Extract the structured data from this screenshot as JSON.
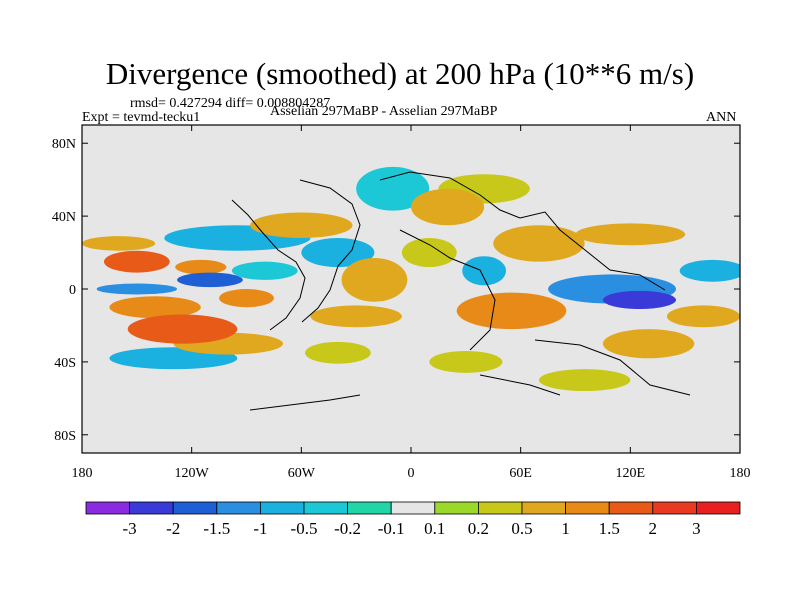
{
  "chart_data": {
    "type": "heatmap",
    "title": "Divergence (smoothed) at 200 hPa (10**6 m/s)",
    "stats_line": "rmsd= 0.427294 diff= 0.008804287",
    "experiment": "Expt = tevmd-tecku1",
    "case": "Asselian 297MaBP - Asselian 297MaBP",
    "season": "ANN",
    "xlabel": "",
    "ylabel": "",
    "xlim": [
      -180,
      180
    ],
    "ylim": [
      -90,
      90
    ],
    "x_ticks": [
      {
        "value": -180,
        "label": "180"
      },
      {
        "value": -120,
        "label": "120W"
      },
      {
        "value": -60,
        "label": "60W"
      },
      {
        "value": 0,
        "label": "0"
      },
      {
        "value": 60,
        "label": "60E"
      },
      {
        "value": 120,
        "label": "120E"
      },
      {
        "value": 180,
        "label": "180"
      }
    ],
    "y_ticks": [
      {
        "value": 80,
        "label": "80N"
      },
      {
        "value": 40,
        "label": "40N"
      },
      {
        "value": 0,
        "label": "0"
      },
      {
        "value": -40,
        "label": "40S"
      },
      {
        "value": -80,
        "label": "80S"
      }
    ],
    "levels": [
      -3,
      -2,
      -1.5,
      -1,
      -0.5,
      -0.2,
      -0.1,
      0.1,
      0.2,
      0.5,
      1,
      1.5,
      2,
      3
    ],
    "level_labels": [
      "-3",
      "-2",
      "-1.5",
      "-1",
      "-0.5",
      "-0.2",
      "-0.1",
      "0.1",
      "0.2",
      "0.5",
      "1",
      "1.5",
      "2",
      "3"
    ],
    "colors": [
      "#8a2be2",
      "#3a3ad8",
      "#1f5fd6",
      "#2a8fe0",
      "#1ab0e0",
      "#1dc8d6",
      "#22d4a8",
      "#e6e6e6",
      "#9ad82a",
      "#c8c81a",
      "#e0a81e",
      "#e88a18",
      "#e85a18",
      "#e83a20",
      "#e82020"
    ],
    "blobs": [
      {
        "x": -150,
        "y": 15,
        "rx": 18,
        "ry": 6,
        "v": 1.6
      },
      {
        "x": -160,
        "y": 25,
        "rx": 20,
        "ry": 4,
        "v": 0.7
      },
      {
        "x": -115,
        "y": 12,
        "rx": 14,
        "ry": 4,
        "v": 1.2
      },
      {
        "x": -110,
        "y": 5,
        "rx": 18,
        "ry": 4,
        "v": -1.7
      },
      {
        "x": -150,
        "y": 0,
        "rx": 22,
        "ry": 3,
        "v": -1.0
      },
      {
        "x": -140,
        "y": -10,
        "rx": 25,
        "ry": 6,
        "v": 1.3
      },
      {
        "x": -125,
        "y": -22,
        "rx": 30,
        "ry": 8,
        "v": 1.8
      },
      {
        "x": -100,
        "y": -30,
        "rx": 30,
        "ry": 6,
        "v": 1.0
      },
      {
        "x": -90,
        "y": -5,
        "rx": 15,
        "ry": 5,
        "v": 1.2
      },
      {
        "x": -130,
        "y": -38,
        "rx": 35,
        "ry": 6,
        "v": -0.5
      },
      {
        "x": -95,
        "y": 28,
        "rx": 40,
        "ry": 7,
        "v": -0.6
      },
      {
        "x": -60,
        "y": 35,
        "rx": 28,
        "ry": 7,
        "v": 0.8
      },
      {
        "x": -40,
        "y": 20,
        "rx": 20,
        "ry": 8,
        "v": -0.5
      },
      {
        "x": -80,
        "y": 10,
        "rx": 18,
        "ry": 5,
        "v": -0.4
      },
      {
        "x": -20,
        "y": 5,
        "rx": 18,
        "ry": 12,
        "v": 0.9
      },
      {
        "x": -30,
        "y": -15,
        "rx": 25,
        "ry": 6,
        "v": 0.6
      },
      {
        "x": -40,
        "y": -35,
        "rx": 18,
        "ry": 6,
        "v": 0.5
      },
      {
        "x": -10,
        "y": 55,
        "rx": 20,
        "ry": 12,
        "v": -0.4
      },
      {
        "x": 20,
        "y": 45,
        "rx": 20,
        "ry": 10,
        "v": 0.6
      },
      {
        "x": 40,
        "y": 55,
        "rx": 25,
        "ry": 8,
        "v": 0.4
      },
      {
        "x": 10,
        "y": 20,
        "rx": 15,
        "ry": 8,
        "v": 0.5
      },
      {
        "x": 40,
        "y": 10,
        "rx": 12,
        "ry": 8,
        "v": -0.5
      },
      {
        "x": 55,
        "y": -12,
        "rx": 30,
        "ry": 10,
        "v": 1.4
      },
      {
        "x": 70,
        "y": 25,
        "rx": 25,
        "ry": 10,
        "v": 0.7
      },
      {
        "x": 120,
        "y": 30,
        "rx": 30,
        "ry": 6,
        "v": 0.6
      },
      {
        "x": 110,
        "y": 0,
        "rx": 35,
        "ry": 8,
        "v": -1.3
      },
      {
        "x": 125,
        "y": -6,
        "rx": 20,
        "ry": 5,
        "v": -2.2
      },
      {
        "x": 130,
        "y": -30,
        "rx": 25,
        "ry": 8,
        "v": 1.0
      },
      {
        "x": 160,
        "y": -15,
        "rx": 20,
        "ry": 6,
        "v": 0.8
      },
      {
        "x": 165,
        "y": 10,
        "rx": 18,
        "ry": 6,
        "v": -0.5
      },
      {
        "x": 95,
        "y": -50,
        "rx": 25,
        "ry": 6,
        "v": 0.5
      },
      {
        "x": 30,
        "y": -40,
        "rx": 20,
        "ry": 6,
        "v": 0.5
      }
    ]
  }
}
